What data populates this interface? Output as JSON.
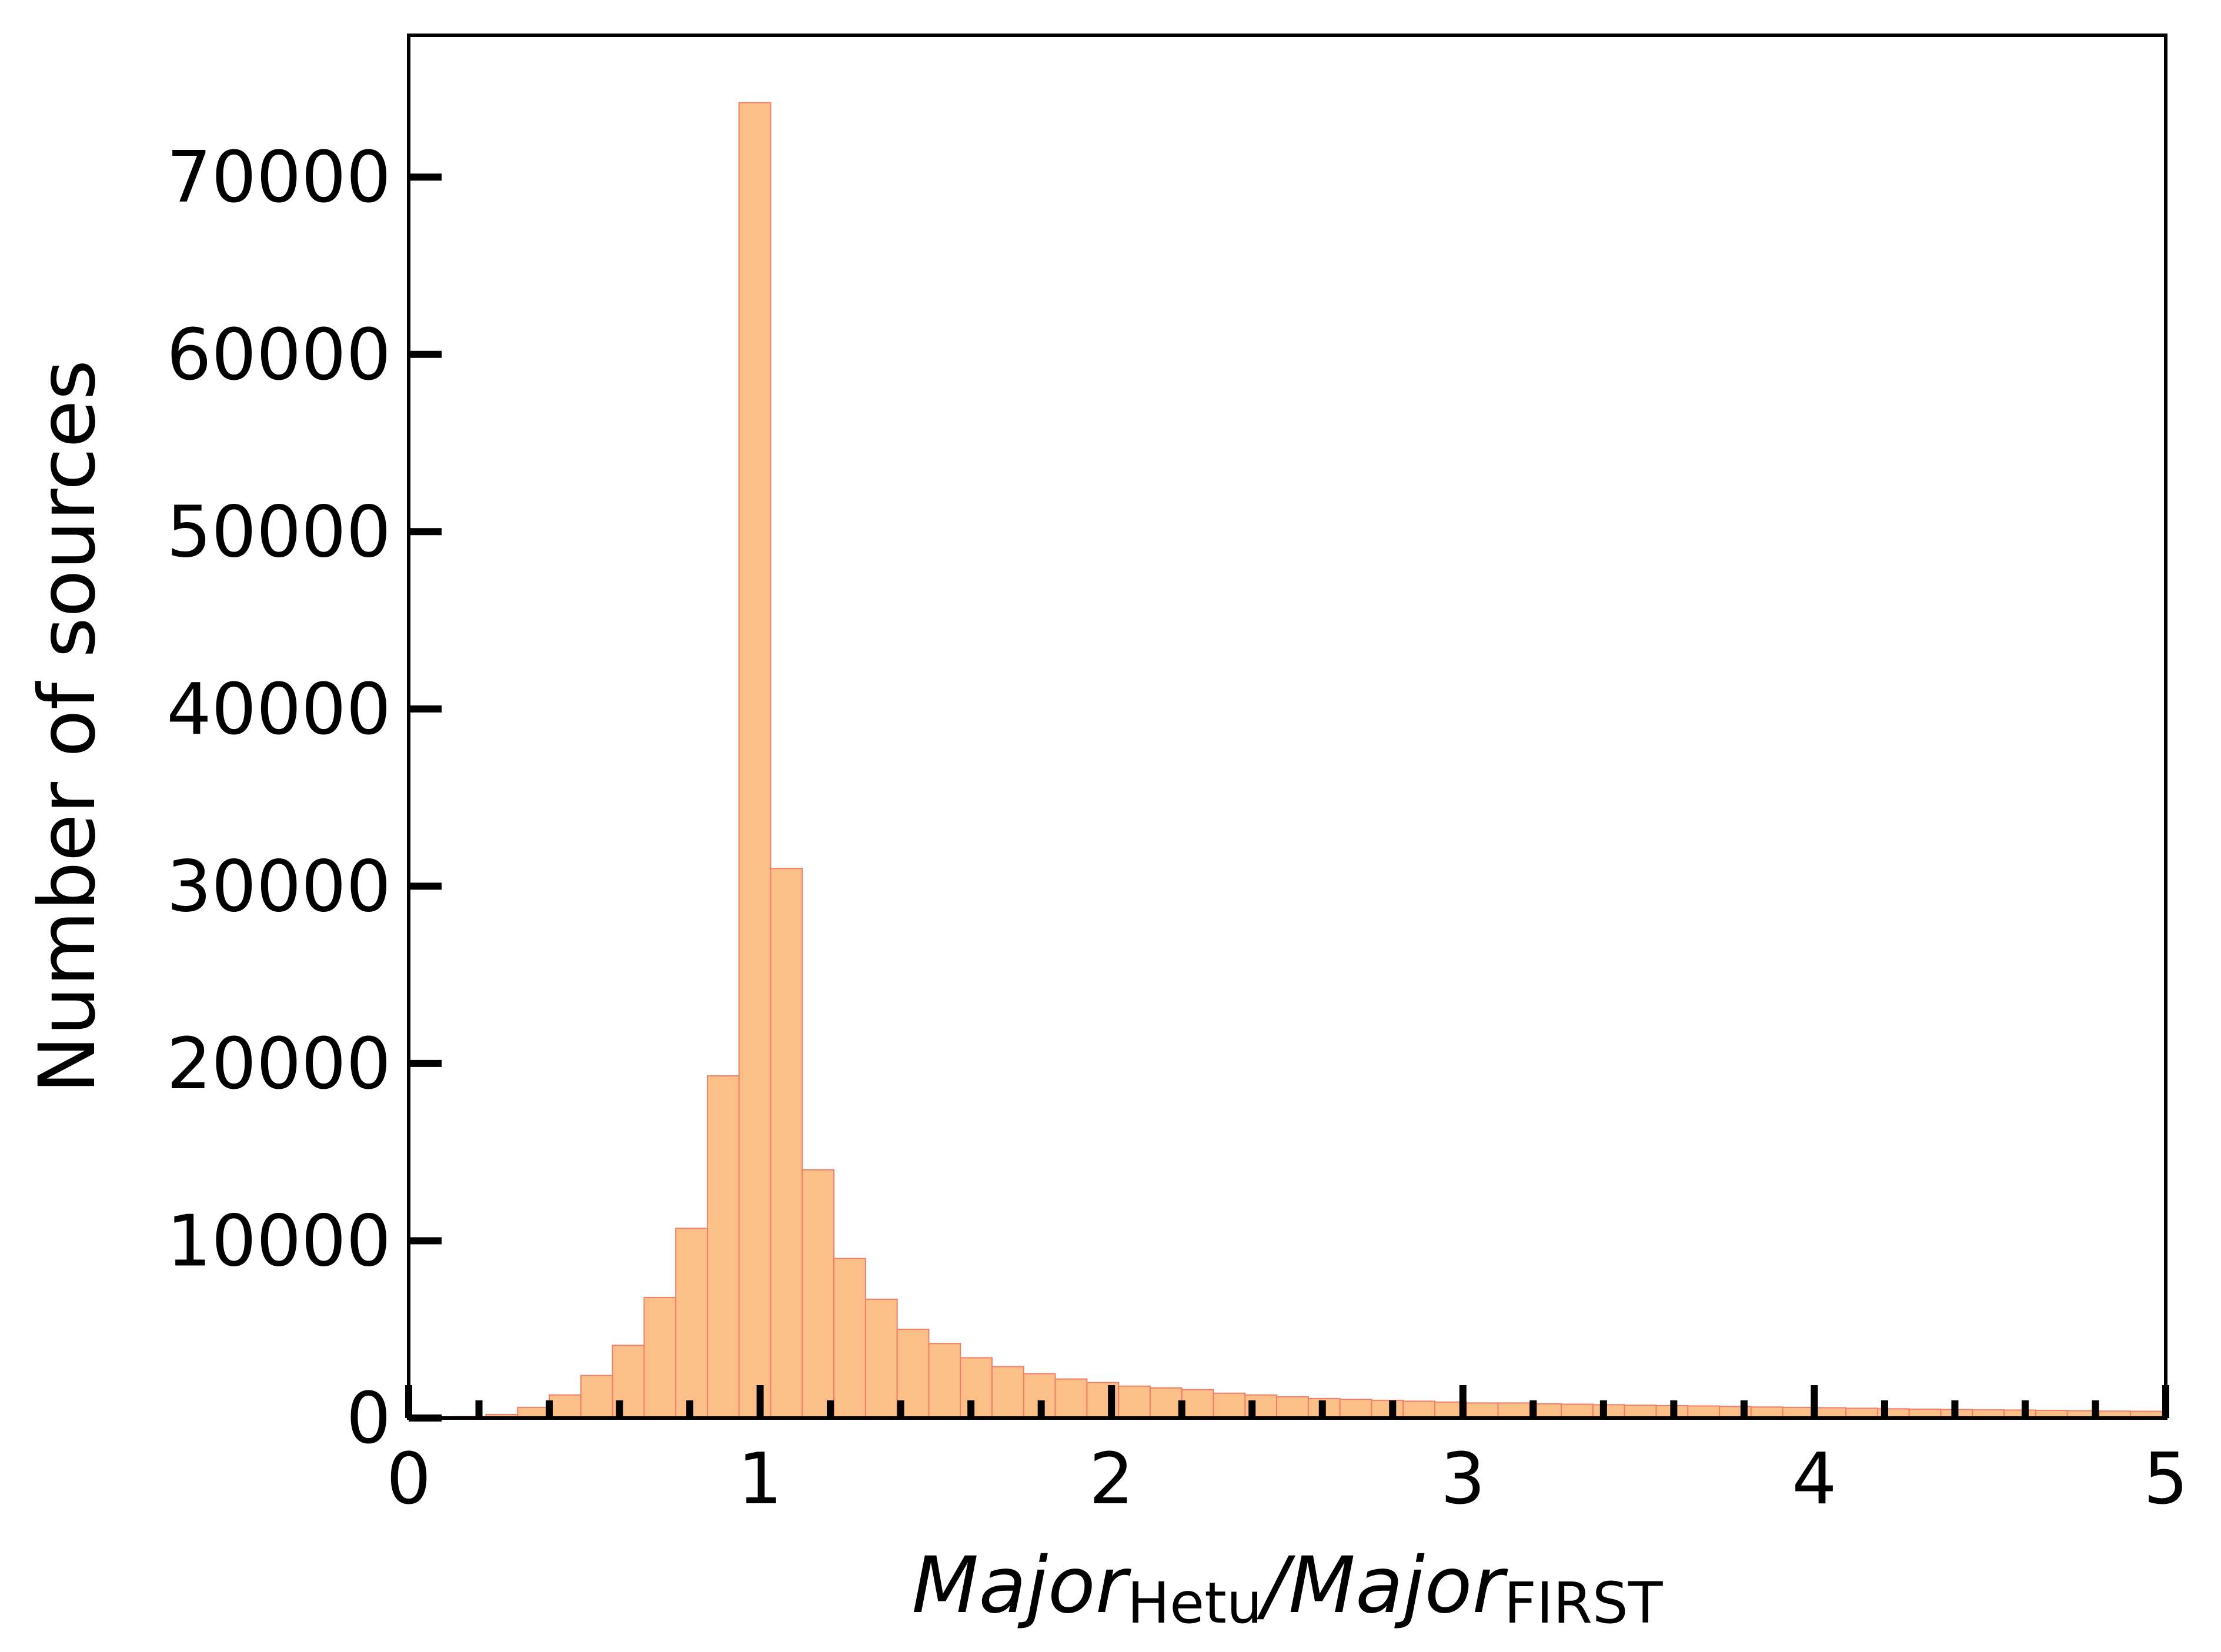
{
  "chart_data": {
    "type": "bar",
    "histogram": true,
    "bin_width": 0.09,
    "bin_starts": [
      0.13,
      0.22,
      0.31,
      0.4,
      0.49,
      0.58,
      0.67,
      0.76,
      0.85,
      0.94,
      1.03,
      1.12,
      1.21,
      1.3,
      1.39,
      1.48,
      1.57,
      1.66,
      1.75,
      1.84,
      1.93,
      2.02,
      2.11,
      2.2,
      2.29,
      2.38,
      2.47,
      2.56,
      2.65,
      2.74,
      2.83,
      2.92,
      3.01,
      3.1,
      3.19,
      3.28,
      3.37,
      3.46,
      3.55,
      3.64,
      3.73,
      3.82,
      3.91,
      4.0,
      4.09,
      4.18,
      4.27,
      4.36,
      4.45,
      4.54,
      4.63,
      4.72,
      4.81,
      4.9
    ],
    "values": [
      80,
      200,
      600,
      1300,
      2400,
      4100,
      6800,
      10700,
      19300,
      74200,
      31000,
      14000,
      9000,
      6700,
      5000,
      4200,
      3400,
      2900,
      2500,
      2200,
      2000,
      1800,
      1700,
      1600,
      1400,
      1300,
      1200,
      1100,
      1050,
      1000,
      950,
      900,
      850,
      850,
      800,
      780,
      750,
      720,
      700,
      680,
      650,
      620,
      600,
      580,
      550,
      520,
      500,
      480,
      460,
      450,
      430,
      410,
      390,
      380
    ],
    "xlim": [
      0,
      5
    ],
    "ylim": [
      0,
      78000
    ],
    "x_ticks": [
      "0",
      "1",
      "2",
      "3",
      "4",
      "5"
    ],
    "y_ticks": [
      "0",
      "10000",
      "20000",
      "30000",
      "40000",
      "50000",
      "60000",
      "70000"
    ],
    "xlabel": {
      "main1": "Major",
      "sub1": "Hetu",
      "sep": "/",
      "main2": "Major",
      "sub2": "FIRST"
    },
    "ylabel": "Number of sources",
    "bar_fill": "#fdbf88",
    "bar_edge": "#f07f6a",
    "grid": false
  }
}
